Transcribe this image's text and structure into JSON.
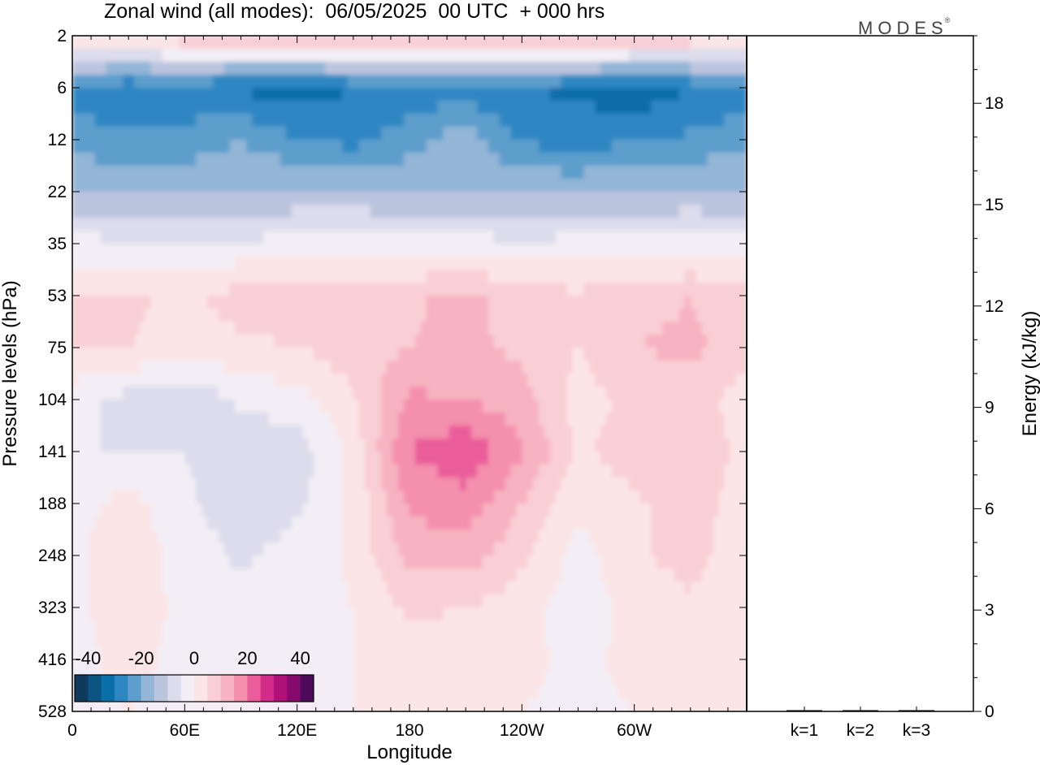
{
  "title": "Zonal wind (all modes):  06/05/2025  00 UTC  + 000 hrs",
  "logo": {
    "text": "MODES",
    "mark": "®"
  },
  "colors": {
    "levels": [
      "#0f3a5c",
      "#0a5581",
      "#0a6ea8",
      "#2d87c2",
      "#5d9ecc",
      "#93b5d6",
      "#bcc5de",
      "#dcdcec",
      "#f3eef5",
      "#fbe5e6",
      "#f9cfd3",
      "#f7b3c0",
      "#f48fae",
      "#ea5d9a",
      "#d32b8a",
      "#b01179",
      "#860a6b",
      "#4d0a5b"
    ],
    "background": "#f3eef5"
  },
  "chart_data": [
    {
      "type": "heatmap",
      "title": "Zonal wind (all modes):  06/05/2025  00 UTC  + 000 hrs",
      "xlabel": "Longitude",
      "ylabel": "Pressure levels (hPa)",
      "x_ticks": [
        "0",
        "60E",
        "120E",
        "180",
        "120W",
        "60W"
      ],
      "x_tick_degrees": [
        0,
        60,
        120,
        180,
        240,
        300
      ],
      "xlim": [
        0,
        360
      ],
      "y_ticks": [
        "2",
        "6",
        "12",
        "22",
        "35",
        "53",
        "75",
        "104",
        "141",
        "188",
        "248",
        "323",
        "416",
        "528"
      ],
      "y_scale": "model levels (non-linear pressure)",
      "colorbar": {
        "tick_labels": [
          "-40",
          "-20",
          "0",
          "20",
          "40"
        ],
        "min": -45,
        "max": 45,
        "step": 5,
        "placement": "bottom-left"
      },
      "pressure_levels_hPa": [
        2,
        6,
        12,
        22,
        35,
        53,
        75,
        104,
        141,
        188,
        248,
        323,
        416,
        528
      ],
      "lon_samples_deg": [
        0,
        30,
        60,
        90,
        120,
        150,
        180,
        210,
        240,
        270,
        300,
        330,
        360
      ],
      "zonal_wind_ms": [
        [
          8,
          9,
          10,
          11,
          12,
          13,
          12,
          12,
          14,
          15,
          12,
          10,
          8
        ],
        [
          -28,
          -30,
          -29,
          -31,
          -33,
          -30,
          -29,
          -28,
          -30,
          -31,
          -34,
          -30,
          -28
        ],
        [
          -22,
          -24,
          -23,
          -20,
          -25,
          -27,
          -22,
          -17,
          -26,
          -27,
          -26,
          -24,
          -22
        ],
        [
          -15,
          -16,
          -16,
          -15,
          -14,
          -14,
          -16,
          -15,
          -16,
          -16,
          -15,
          -14,
          -15
        ],
        [
          -3,
          -4,
          -4,
          -4,
          -3,
          -2,
          -3,
          -3,
          -4,
          -3,
          -3,
          -3,
          -3
        ],
        [
          5,
          6,
          4,
          7,
          8,
          6,
          9,
          12,
          7,
          6,
          8,
          10,
          7
        ],
        [
          6,
          5,
          3,
          4,
          5,
          8,
          10,
          11,
          9,
          5,
          10,
          11,
          8
        ],
        [
          -3,
          -7,
          -10,
          -4,
          -2,
          4,
          16,
          15,
          12,
          3,
          6,
          8,
          2
        ],
        [
          -4,
          -6,
          -5,
          -9,
          -8,
          2,
          20,
          24,
          16,
          4,
          8,
          10,
          3
        ],
        [
          -2,
          2,
          -4,
          -8,
          -6,
          1,
          16,
          18,
          10,
          1,
          4,
          8,
          2
        ],
        [
          -1,
          3,
          -2,
          -6,
          -3,
          1,
          12,
          13,
          6,
          -2,
          4,
          7,
          1
        ],
        [
          -1,
          2,
          -1,
          -3,
          -2,
          0,
          6,
          5,
          2,
          -3,
          2,
          4,
          0
        ],
        [
          -1,
          1,
          -1,
          -2,
          -1,
          0,
          3,
          1,
          1,
          -1,
          1,
          2,
          0
        ],
        [
          -1,
          0,
          -1,
          -1,
          0,
          0,
          1,
          0,
          0,
          -1,
          0,
          1,
          0
        ]
      ]
    },
    {
      "type": "bar",
      "title": "",
      "xlabel": "",
      "ylabel": "Energy (kJ/kg)",
      "categories": [
        "k=1",
        "k=2",
        "k=3"
      ],
      "values": [
        0.02,
        0.01,
        0.01
      ],
      "ylim": [
        0,
        20
      ],
      "y_ticks": [
        "0",
        "3",
        "6",
        "9",
        "12",
        "15",
        "18"
      ],
      "y_tick_values": [
        0,
        3,
        6,
        9,
        12,
        15,
        18
      ]
    }
  ]
}
